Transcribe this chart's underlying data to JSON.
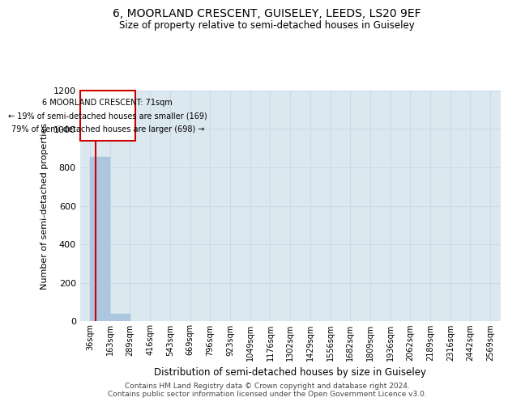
{
  "title_line1": "6, MOORLAND CRESCENT, GUISELEY, LEEDS, LS20 9EF",
  "title_line2": "Size of property relative to semi-detached houses in Guiseley",
  "xlabel": "Distribution of semi-detached houses by size in Guiseley",
  "ylabel": "Number of semi-detached properties",
  "footer_line1": "Contains HM Land Registry data © Crown copyright and database right 2024.",
  "footer_line2": "Contains public sector information licensed under the Open Government Licence v3.0.",
  "annotation_line1": "6 MOORLAND CRESCENT: 71sqm",
  "annotation_line2": "← 19% of semi-detached houses are smaller (169)",
  "annotation_line3": "79% of semi-detached houses are larger (698) →",
  "property_size": 71,
  "bin_edges": [
    36,
    163,
    289,
    416,
    543,
    669,
    796,
    923,
    1049,
    1176,
    1302,
    1429,
    1556,
    1682,
    1809,
    1936,
    2062,
    2189,
    2316,
    2442,
    2569
  ],
  "bar_heights": [
    853,
    36,
    0,
    0,
    0,
    0,
    0,
    0,
    0,
    0,
    0,
    0,
    0,
    0,
    0,
    0,
    0,
    0,
    0,
    0
  ],
  "bar_color": "#adc6e0",
  "bar_edgecolor": "#adc6e0",
  "grid_color": "#ccd9e8",
  "annotation_box_color": "#cc0000",
  "property_line_color": "#cc0000",
  "ylim": [
    0,
    1200
  ],
  "yticks": [
    0,
    200,
    400,
    600,
    800,
    1000,
    1200
  ],
  "plot_bg_color": "#dce8f0",
  "fig_bg_color": "#ffffff"
}
